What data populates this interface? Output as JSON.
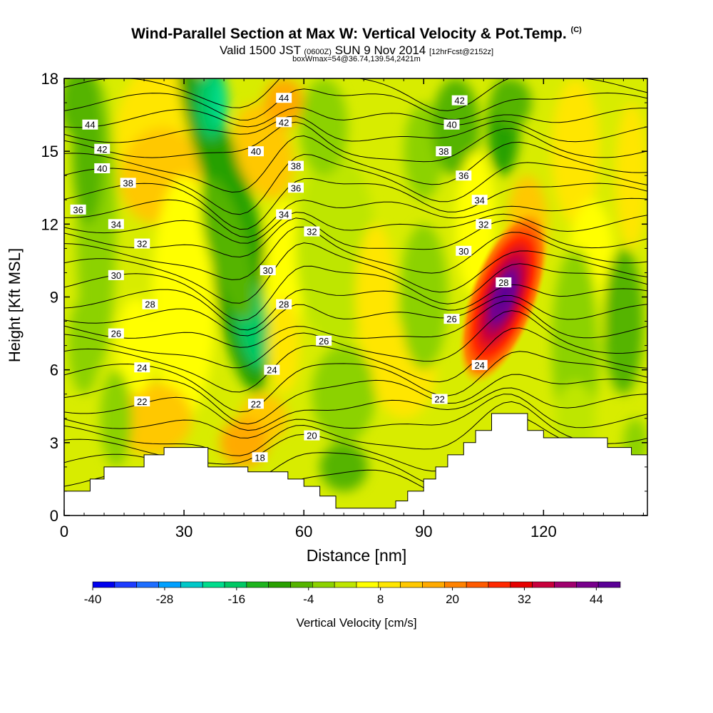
{
  "chart_data": {
    "type": "heatmap",
    "title": "Wind-Parallel Section at Max W: Vertical Velocity & Pot.Temp.",
    "title_tag": "(C)",
    "subtitle_main": "Valid 1500 JST",
    "subtitle_small1": "(0600Z)",
    "subtitle_date": "SUN 9 Nov 2014",
    "subtitle_small2": "[12hrFcst@2152z]",
    "subtitle2": "boxWmax=54@36.74,139.54,2421m",
    "xlabel": "Distance [nm]",
    "ylabel": "Height [Kft MSL]",
    "xlim": [
      0,
      146
    ],
    "ylim": [
      0,
      18
    ],
    "x_ticks": [
      "0",
      "30",
      "60",
      "90",
      "120"
    ],
    "y_ticks": [
      "0",
      "3",
      "6",
      "9",
      "12",
      "15",
      "18"
    ],
    "colorbar_label": "Vertical Velocity [cm/s]",
    "colorbar_ticks": [
      "-40",
      "-28",
      "-16",
      "-4",
      "8",
      "20",
      "32",
      "44"
    ],
    "colorbar_range": [
      -40,
      48
    ],
    "colorbar_colors": [
      "#0000ee",
      "#1e3cff",
      "#1e6eff",
      "#00a0ff",
      "#00c8c8",
      "#00dc8c",
      "#00c864",
      "#1eb41e",
      "#28a000",
      "#55b400",
      "#8cd200",
      "#bee600",
      "#ffff00",
      "#ffe600",
      "#ffc800",
      "#ffaa00",
      "#ff8200",
      "#ff5a00",
      "#ff2800",
      "#e60000",
      "#c8003c",
      "#a0006e",
      "#78008c",
      "#5a0096"
    ],
    "contour_variable": "Potential Temperature",
    "contour_labels": [
      {
        "text": "44",
        "x": 6.5,
        "y": 16.1
      },
      {
        "text": "42",
        "x": 9.5,
        "y": 15.1
      },
      {
        "text": "40",
        "x": 9.5,
        "y": 14.3
      },
      {
        "text": "38",
        "x": 16,
        "y": 13.7
      },
      {
        "text": "36",
        "x": 3.5,
        "y": 12.6
      },
      {
        "text": "34",
        "x": 13,
        "y": 12.0
      },
      {
        "text": "32",
        "x": 19.5,
        "y": 11.2
      },
      {
        "text": "30",
        "x": 13,
        "y": 9.9
      },
      {
        "text": "28",
        "x": 21.5,
        "y": 8.7
      },
      {
        "text": "26",
        "x": 13,
        "y": 7.5
      },
      {
        "text": "24",
        "x": 19.5,
        "y": 6.1
      },
      {
        "text": "22",
        "x": 19.5,
        "y": 4.7
      },
      {
        "text": "44",
        "x": 55,
        "y": 17.2
      },
      {
        "text": "42",
        "x": 55,
        "y": 16.2
      },
      {
        "text": "40",
        "x": 48,
        "y": 15.0
      },
      {
        "text": "38",
        "x": 58,
        "y": 14.4
      },
      {
        "text": "36",
        "x": 58,
        "y": 13.5
      },
      {
        "text": "34",
        "x": 55,
        "y": 12.4
      },
      {
        "text": "32",
        "x": 62,
        "y": 11.7
      },
      {
        "text": "30",
        "x": 51,
        "y": 10.1
      },
      {
        "text": "28",
        "x": 55,
        "y": 8.7
      },
      {
        "text": "26",
        "x": 65,
        "y": 7.2
      },
      {
        "text": "24",
        "x": 52,
        "y": 6.0
      },
      {
        "text": "22",
        "x": 48,
        "y": 4.6
      },
      {
        "text": "20",
        "x": 62,
        "y": 3.3
      },
      {
        "text": "18",
        "x": 49,
        "y": 2.4
      },
      {
        "text": "42",
        "x": 99,
        "y": 17.1
      },
      {
        "text": "40",
        "x": 97,
        "y": 16.1
      },
      {
        "text": "38",
        "x": 95,
        "y": 15.0
      },
      {
        "text": "36",
        "x": 100,
        "y": 14.0
      },
      {
        "text": "34",
        "x": 104,
        "y": 13.0
      },
      {
        "text": "32",
        "x": 105,
        "y": 12.0
      },
      {
        "text": "30",
        "x": 100,
        "y": 10.9
      },
      {
        "text": "28",
        "x": 110,
        "y": 9.6
      },
      {
        "text": "26",
        "x": 97,
        "y": 8.1
      },
      {
        "text": "24",
        "x": 104,
        "y": 6.2
      },
      {
        "text": "22",
        "x": 94,
        "y": 4.8
      }
    ]
  }
}
